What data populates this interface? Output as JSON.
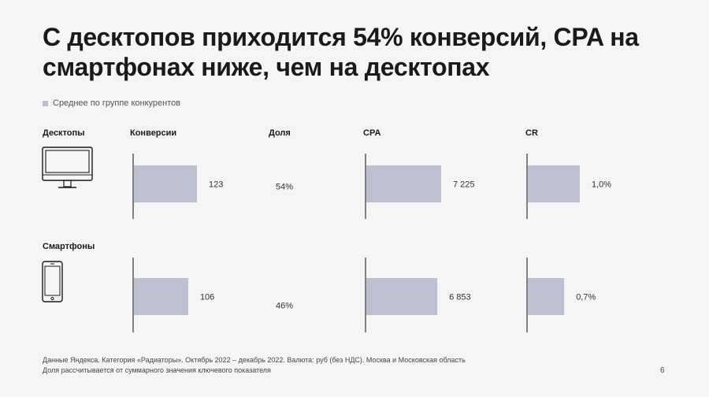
{
  "title": "С десктопов приходится 54% конверсий, CPA на смартфонах ниже, чем на десктопах",
  "legend": {
    "label": "Среднее по группе конкурентов",
    "color": "#bcc0d0"
  },
  "headers": {
    "device": "Десктопы",
    "conversions": "Конверсии",
    "share": "Доля",
    "cpa": "CPA",
    "cr": "CR"
  },
  "rows": {
    "desktop": {
      "label": "Десктопы",
      "icon": "desktop-monitor-icon"
    },
    "smartphone": {
      "label": "Смартфоны",
      "icon": "smartphone-icon"
    }
  },
  "chart_data": [
    {
      "type": "bar",
      "orientation": "horizontal",
      "metric": "Конверсии",
      "categories": [
        "Десктопы",
        "Смартфоны"
      ],
      "values": [
        123,
        106
      ],
      "labels": [
        "123",
        "106"
      ],
      "shares": [
        "54%",
        "46%"
      ]
    },
    {
      "type": "bar",
      "orientation": "horizontal",
      "metric": "CPA",
      "categories": [
        "Десктопы",
        "Смартфоны"
      ],
      "values": [
        7225,
        6853
      ],
      "labels": [
        "7 225",
        "6 853"
      ]
    },
    {
      "type": "bar",
      "orientation": "horizontal",
      "metric": "CR",
      "categories": [
        "Десктопы",
        "Смартфоны"
      ],
      "values": [
        1.0,
        0.7
      ],
      "labels": [
        "1,0%",
        "0,7%"
      ]
    }
  ],
  "footnotes": [
    "Данные Яндекса. Категория «Радиаторы». Октябрь 2022 – декабрь 2022. Валюта: руб (без НДС). Москва и Московская область",
    "Доля рассчитывается от суммарного значения ключевого показателя"
  ],
  "page_number": "6"
}
